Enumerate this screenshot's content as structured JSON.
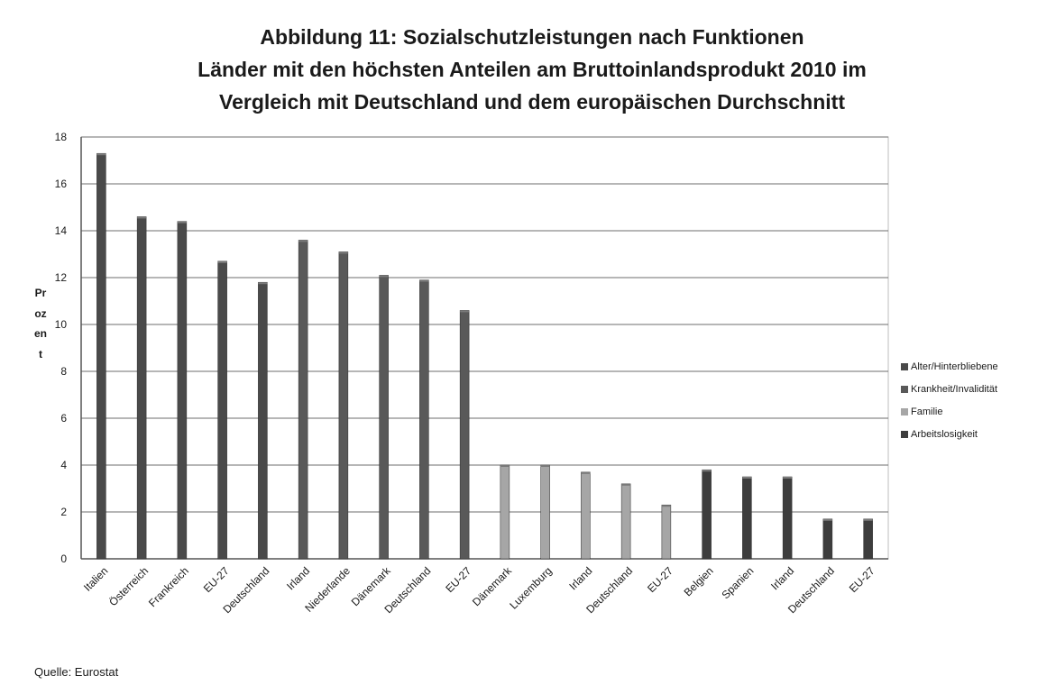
{
  "chart_data": {
    "type": "bar",
    "title_lines": [
      "Abbildung 11: Sozialschutzleistungen nach Funktionen",
      "Länder mit den höchsten Anteilen am Bruttoinlandsprodukt 2010 im",
      "Vergleich mit  Deutschland  und dem europäischen Durchschnitt"
    ],
    "ylabel": "Prozent",
    "ylim": [
      0,
      18
    ],
    "yticks": [
      0,
      2,
      4,
      6,
      8,
      10,
      12,
      14,
      16,
      18
    ],
    "grid": true,
    "legend_position": "right",
    "categories": [
      "Italien",
      "Österreich",
      "Frankreich",
      "EU-27",
      "Deutschland",
      "Irland",
      "Niederlande",
      "Dänemark",
      "Deutschland",
      "EU-27",
      "Dänemark",
      "Luxemburg",
      "Irland",
      "Deutschland",
      "EU-27",
      "Belgien",
      "Spanien",
      "Irland",
      "Deutschland",
      "EU-27"
    ],
    "series": [
      {
        "name": "Alter/Hinterbliebene",
        "color": "#4a4a4a",
        "values": [
          17.3,
          14.6,
          14.4,
          12.7,
          11.8,
          null,
          null,
          null,
          null,
          null,
          null,
          null,
          null,
          null,
          null,
          null,
          null,
          null,
          null,
          null
        ]
      },
      {
        "name": "Krankheit/Invalidität",
        "color": "#595959",
        "values": [
          null,
          null,
          null,
          null,
          null,
          13.6,
          13.1,
          12.1,
          11.9,
          10.6,
          null,
          null,
          null,
          null,
          null,
          null,
          null,
          null,
          null,
          null
        ]
      },
      {
        "name": "Familie",
        "color": "#a6a6a6",
        "values": [
          null,
          null,
          null,
          null,
          null,
          null,
          null,
          null,
          null,
          null,
          4.0,
          4.0,
          3.7,
          3.2,
          2.3,
          null,
          null,
          null,
          null,
          null
        ]
      },
      {
        "name": "Arbeitslosigkeit",
        "color": "#3d3d3d",
        "values": [
          null,
          null,
          null,
          null,
          null,
          null,
          null,
          null,
          null,
          null,
          null,
          null,
          null,
          null,
          null,
          3.8,
          3.5,
          3.5,
          1.7,
          1.7
        ]
      }
    ]
  },
  "source": "Quelle: Eurostat"
}
